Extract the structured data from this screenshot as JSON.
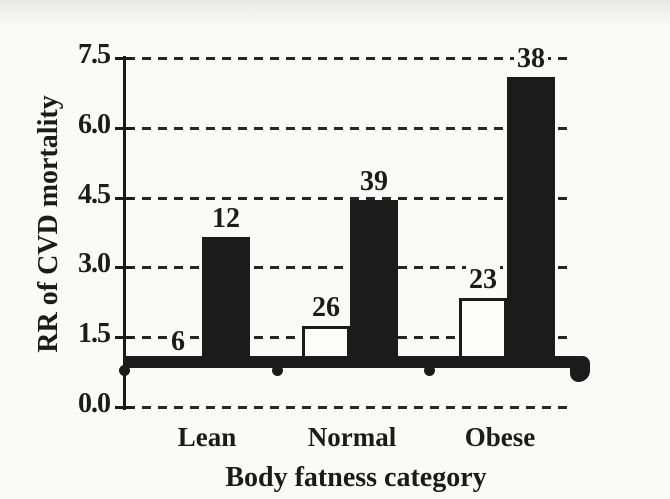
{
  "figure": {
    "background": "#fafaf8",
    "ink": "#1b1b1b",
    "style": "scanned black-and-white journal figure"
  },
  "chart_data": {
    "type": "bar",
    "title": "",
    "xlabel": "Body fatness category",
    "ylabel": "RR of CVD mortality",
    "ylim": [
      0.0,
      7.5
    ],
    "yticks": [
      {
        "value": 7.5,
        "label": "7.5"
      },
      {
        "value": 6.0,
        "label": "6.0"
      },
      {
        "value": 4.5,
        "label": "4.5"
      },
      {
        "value": 3.0,
        "label": "3.0"
      },
      {
        "value": 1.5,
        "label": "1.5"
      },
      {
        "value": 0.0,
        "label": "0.0"
      }
    ],
    "grid": {
      "axis": "y",
      "style": "dashed"
    },
    "legend_position": "none",
    "baseline": {
      "value": 1.0,
      "note": "thick solid reference band at RR = 1.0 with tick dots between category groups"
    },
    "categories": [
      "Lean",
      "Normal",
      "Obese"
    ],
    "series": [
      {
        "name": "open-bars",
        "fill": "white",
        "values": [
          1.0,
          1.75,
          2.35
        ],
        "bar_labels": [
          "6",
          "26",
          "23"
        ]
      },
      {
        "name": "solid-bars",
        "fill": "black",
        "values": [
          3.65,
          4.45,
          7.1
        ],
        "bar_labels": [
          "12",
          "39",
          "38"
        ]
      }
    ]
  }
}
